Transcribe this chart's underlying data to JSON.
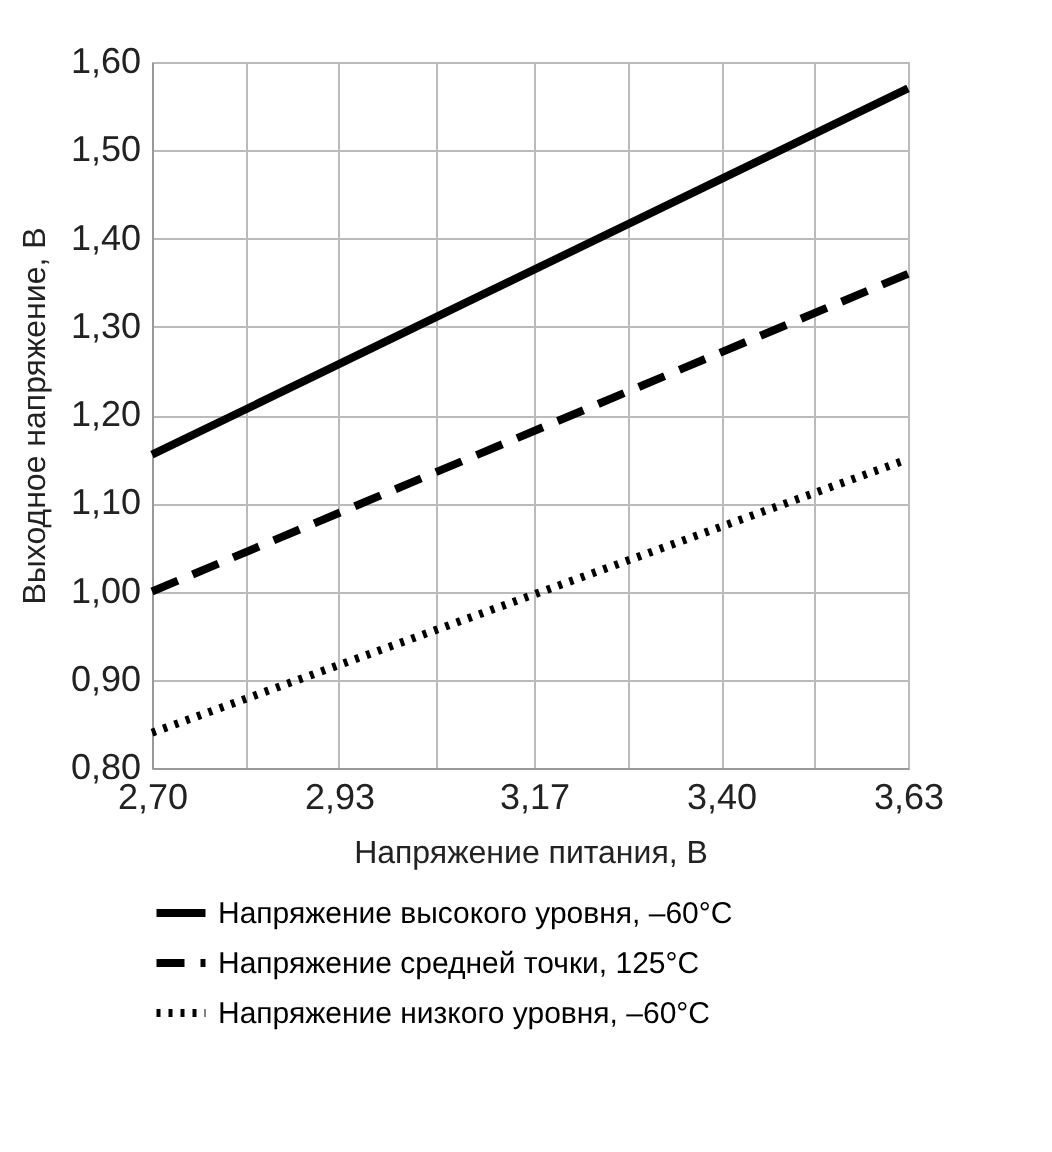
{
  "chart_data": {
    "type": "line",
    "xlabel": "Напряжение питания, В",
    "ylabel": "Выходное напряжение, В",
    "xlim": [
      2.7,
      3.63
    ],
    "xticks": [
      {
        "value": 2.7,
        "label": "2,70"
      },
      {
        "value": 2.815,
        "label": null
      },
      {
        "value": 2.93,
        "label": "2,93"
      },
      {
        "value": 3.05,
        "label": null
      },
      {
        "value": 3.17,
        "label": "3,17"
      },
      {
        "value": 3.285,
        "label": null
      },
      {
        "value": 3.4,
        "label": "3,40"
      },
      {
        "value": 3.515,
        "label": null
      },
      {
        "value": 3.63,
        "label": "3,63"
      }
    ],
    "ylim": [
      0.8,
      1.6
    ],
    "yticks": [
      {
        "value": 0.8,
        "label": "0,80"
      },
      {
        "value": 0.9,
        "label": "0,90"
      },
      {
        "value": 1.0,
        "label": "1,00"
      },
      {
        "value": 1.1,
        "label": "1,10"
      },
      {
        "value": 1.2,
        "label": "1,20"
      },
      {
        "value": 1.3,
        "label": "1,30"
      },
      {
        "value": 1.4,
        "label": "1,40"
      },
      {
        "value": 1.5,
        "label": "1,50"
      },
      {
        "value": 1.6,
        "label": "1,60"
      }
    ],
    "grid": true,
    "legend": "bottom",
    "marker": "none",
    "x": [
      2.7,
      3.63
    ],
    "series": [
      {
        "name": "Напряжение высокого уровня, –60°C",
        "color": "#000000",
        "line_style": "solid",
        "values": [
          1.155,
          1.57
        ]
      },
      {
        "name": "Напряжение средней точки, 125°C",
        "color": "#000000",
        "line_style": "dashed",
        "values": [
          1.0,
          1.36
        ]
      },
      {
        "name": "Напряжение низкого уровня, –60°C",
        "color": "#000000",
        "line_style": "dotted",
        "values": [
          0.84,
          1.15
        ]
      }
    ]
  }
}
